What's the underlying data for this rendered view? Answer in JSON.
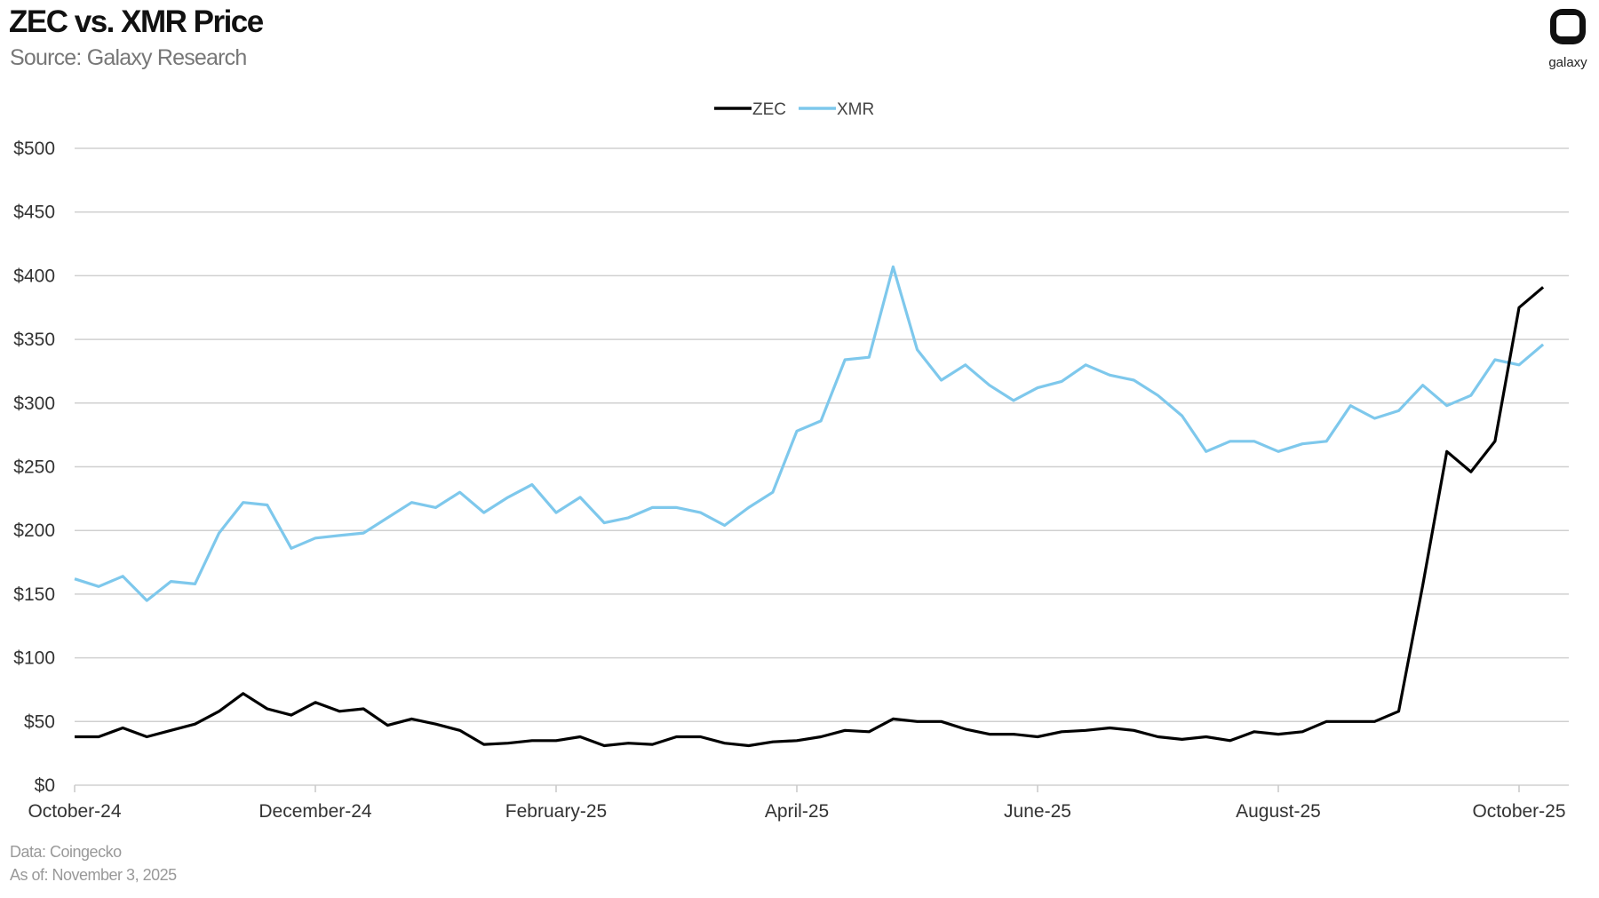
{
  "chart_data": {
    "type": "line",
    "title": "ZEC vs. XMR Price",
    "subtitle": "Source: Galaxy Research",
    "notes": [
      "Data: Coingecko",
      "As of: November 3, 2025"
    ],
    "logo_text": "galaxy",
    "categories": [
      "October-24",
      null,
      null,
      null,
      null,
      null,
      null,
      null,
      null,
      null,
      "December-24",
      null,
      null,
      null,
      null,
      null,
      null,
      null,
      null,
      null,
      "February-25",
      null,
      null,
      null,
      null,
      null,
      null,
      null,
      null,
      null,
      "April-25",
      null,
      null,
      null,
      null,
      null,
      null,
      null,
      null,
      null,
      "June-25",
      null,
      null,
      null,
      null,
      null,
      null,
      null,
      null,
      null,
      "August-25",
      null,
      null,
      null,
      null,
      null,
      null,
      null,
      null,
      null,
      "October-25",
      null
    ],
    "series": [
      {
        "name": "ZEC",
        "color": "#000000",
        "values": [
          38,
          38,
          45,
          38,
          43,
          48,
          58,
          72,
          60,
          55,
          65,
          58,
          60,
          47,
          52,
          48,
          43,
          32,
          33,
          35,
          35,
          38,
          31,
          33,
          32,
          38,
          38,
          33,
          31,
          34,
          35,
          38,
          43,
          42,
          52,
          50,
          50,
          44,
          40,
          40,
          38,
          42,
          43,
          45,
          43,
          38,
          36,
          38,
          35,
          42,
          40,
          42,
          50,
          50,
          50,
          58,
          157,
          262,
          246,
          270,
          375,
          391
        ]
      },
      {
        "name": "XMR",
        "color": "#7ec8ec",
        "values": [
          162,
          156,
          164,
          145,
          160,
          158,
          198,
          222,
          220,
          186,
          194,
          196,
          198,
          210,
          222,
          218,
          230,
          214,
          226,
          236,
          214,
          226,
          206,
          210,
          218,
          218,
          214,
          204,
          218,
          230,
          278,
          286,
          334,
          336,
          407,
          342,
          318,
          330,
          314,
          302,
          312,
          317,
          330,
          322,
          318,
          306,
          290,
          262,
          270,
          270,
          262,
          268,
          270,
          298,
          288,
          294,
          314,
          298,
          306,
          334,
          330,
          346
        ]
      }
    ],
    "ylim": [
      0,
      500
    ],
    "yticks": [
      {
        "value": 0,
        "label": "$0"
      },
      {
        "value": 50,
        "label": "$50"
      },
      {
        "value": 100,
        "label": "$100"
      },
      {
        "value": 150,
        "label": "$150"
      },
      {
        "value": 200,
        "label": "$200"
      },
      {
        "value": 250,
        "label": "$250"
      },
      {
        "value": 300,
        "label": "$300"
      },
      {
        "value": 350,
        "label": "$350"
      },
      {
        "value": 400,
        "label": "$400"
      },
      {
        "value": 450,
        "label": "$450"
      },
      {
        "value": 500,
        "label": "$500"
      }
    ],
    "grid": true,
    "legend": "top"
  }
}
